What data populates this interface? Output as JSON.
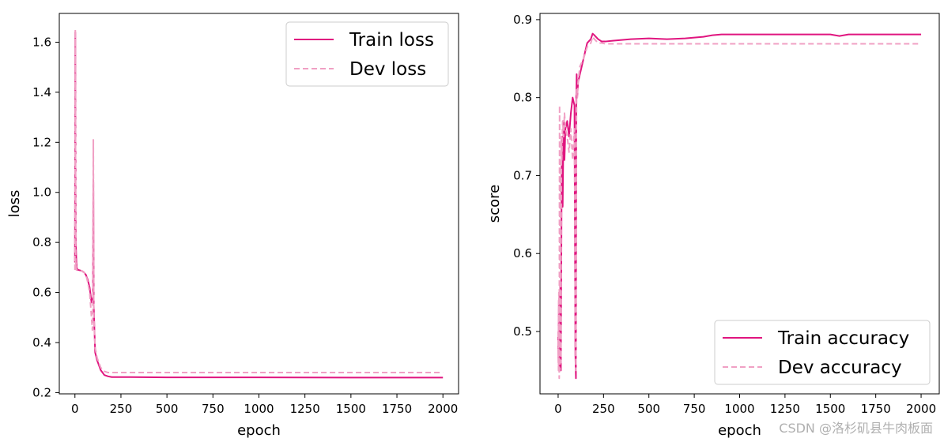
{
  "colors": {
    "train": "#e0157f",
    "dev": "#f0a0c4",
    "axis": "#000000",
    "legend_border": "#cccccc"
  },
  "watermark": "CSDN @洛杉矶县牛肉板面",
  "chart_data": [
    {
      "type": "line",
      "title": "",
      "xlabel": "epoch",
      "ylabel": "loss",
      "xlim": [
        -85,
        2085
      ],
      "ylim": [
        0.195,
        1.715
      ],
      "xticks": [
        0,
        250,
        500,
        750,
        1000,
        1250,
        1500,
        1750,
        2000
      ],
      "xtick_labels": [
        "0",
        "250",
        "500",
        "750",
        "1000",
        "1250",
        "1500",
        "1750",
        "2000"
      ],
      "yticks": [
        0.2,
        0.4,
        0.6,
        0.8,
        1.0,
        1.2,
        1.4,
        1.6
      ],
      "ytick_labels": [
        "0.2",
        "0.4",
        "0.6",
        "0.8",
        "1.0",
        "1.2",
        "1.4",
        "1.6"
      ],
      "legend_position": "upper right",
      "series": [
        {
          "name": "Train loss",
          "style": "solid",
          "x": [
            0,
            2,
            4,
            6,
            8,
            10,
            12,
            15,
            20,
            30,
            40,
            50,
            60,
            70,
            80,
            90,
            95,
            98,
            100,
            102,
            104,
            106,
            110,
            120,
            140,
            160,
            180,
            200,
            250,
            300,
            500,
            1000,
            1500,
            2000
          ],
          "y": [
            0.72,
            1.64,
            0.81,
            0.77,
            0.72,
            0.7,
            0.695,
            0.69,
            0.69,
            0.688,
            0.685,
            0.68,
            0.67,
            0.65,
            0.62,
            0.56,
            0.57,
            0.58,
            1.05,
            0.55,
            0.5,
            0.45,
            0.36,
            0.33,
            0.29,
            0.27,
            0.265,
            0.262,
            0.262,
            0.262,
            0.261,
            0.261,
            0.26,
            0.26
          ]
        },
        {
          "name": "Dev loss",
          "style": "dashed",
          "x": [
            0,
            2,
            4,
            6,
            8,
            10,
            12,
            15,
            20,
            30,
            40,
            50,
            60,
            70,
            80,
            90,
            95,
            98,
            100,
            102,
            104,
            106,
            110,
            120,
            140,
            160,
            180,
            200,
            250,
            300,
            500,
            1000,
            1500,
            2000
          ],
          "y": [
            0.69,
            1.65,
            0.7,
            0.72,
            0.69,
            0.69,
            0.69,
            0.69,
            0.69,
            0.688,
            0.684,
            0.68,
            0.67,
            0.64,
            0.6,
            0.5,
            0.45,
            0.6,
            1.21,
            0.52,
            0.48,
            0.44,
            0.38,
            0.34,
            0.3,
            0.285,
            0.28,
            0.28,
            0.28,
            0.28,
            0.28,
            0.28,
            0.28,
            0.28
          ]
        }
      ]
    },
    {
      "type": "line",
      "title": "",
      "xlabel": "epoch",
      "ylabel": "score",
      "xlim": [
        -100,
        2100
      ],
      "ylim": [
        0.42,
        0.908
      ],
      "xticks": [
        0,
        250,
        500,
        750,
        1000,
        1250,
        1500,
        1750,
        2000
      ],
      "xtick_labels": [
        "0",
        "250",
        "500",
        "750",
        "1000",
        "1250",
        "1500",
        "1750",
        "2000"
      ],
      "yticks": [
        0.5,
        0.6,
        0.7,
        0.8,
        0.9
      ],
      "ytick_labels": [
        "0.5",
        "0.6",
        "0.7",
        "0.8",
        "0.9"
      ],
      "legend_position": "lower right",
      "series": [
        {
          "name": "Train accuracy",
          "style": "solid",
          "x": [
            0,
            2,
            4,
            6,
            8,
            10,
            12,
            15,
            18,
            20,
            25,
            30,
            35,
            40,
            50,
            60,
            70,
            80,
            90,
            95,
            98,
            100,
            102,
            105,
            110,
            120,
            140,
            160,
            180,
            190,
            200,
            220,
            240,
            260,
            300,
            400,
            500,
            600,
            700,
            800,
            850,
            900,
            1000,
            1200,
            1500,
            1550,
            1600,
            2000
          ],
          "y": [
            0.5,
            0.46,
            0.54,
            0.45,
            0.55,
            0.47,
            0.56,
            0.45,
            0.62,
            0.75,
            0.66,
            0.77,
            0.72,
            0.76,
            0.77,
            0.75,
            0.78,
            0.8,
            0.79,
            0.47,
            0.44,
            0.8,
            0.83,
            0.8,
            0.82,
            0.83,
            0.85,
            0.87,
            0.875,
            0.882,
            0.88,
            0.875,
            0.872,
            0.872,
            0.873,
            0.875,
            0.876,
            0.875,
            0.876,
            0.878,
            0.88,
            0.881,
            0.881,
            0.881,
            0.881,
            0.879,
            0.881,
            0.881
          ]
        },
        {
          "name": "Dev accuracy",
          "style": "dashed",
          "x": [
            0,
            2,
            4,
            6,
            8,
            10,
            12,
            15,
            18,
            20,
            25,
            30,
            35,
            40,
            50,
            60,
            70,
            80,
            90,
            95,
            98,
            100,
            102,
            105,
            110,
            120,
            140,
            160,
            180,
            190,
            200,
            220,
            240,
            260,
            300,
            400,
            600,
            800,
            1000,
            1500,
            2000
          ],
          "y": [
            0.5,
            0.45,
            0.55,
            0.44,
            0.79,
            0.45,
            0.7,
            0.46,
            0.75,
            0.72,
            0.77,
            0.75,
            0.78,
            0.76,
            0.75,
            0.73,
            0.76,
            0.72,
            0.76,
            0.5,
            0.45,
            0.74,
            0.81,
            0.8,
            0.82,
            0.84,
            0.85,
            0.865,
            0.87,
            0.878,
            0.875,
            0.87,
            0.87,
            0.869,
            0.869,
            0.869,
            0.869,
            0.869,
            0.869,
            0.869,
            0.869
          ]
        }
      ]
    }
  ]
}
